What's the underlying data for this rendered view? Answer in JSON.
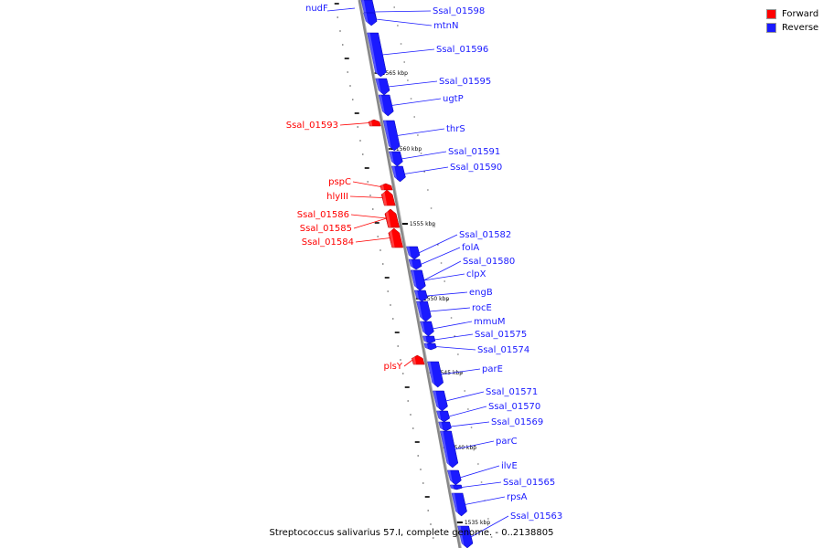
{
  "legend": {
    "forward_label": "Forward",
    "reverse_label": "Reverse",
    "forward_color": "#ff0000",
    "reverse_color": "#1a1aff"
  },
  "caption": "Streptococcus salivarius 57.I, complete genome. - 0..2138805",
  "colors": {
    "forward": "#ff0000",
    "reverse": "#1a1aff",
    "backbone": "#888888"
  },
  "scale": {
    "unit": "kbp",
    "ticks": [
      1565,
      1560,
      1555,
      1550,
      1545,
      1540,
      1535
    ]
  },
  "features": [
    {
      "name": "nudF",
      "strand": "reverse"
    },
    {
      "name": "Ssal_01598",
      "strand": "reverse"
    },
    {
      "name": "mtnN",
      "strand": "reverse"
    },
    {
      "name": "Ssal_01596",
      "strand": "reverse"
    },
    {
      "name": "Ssal_01595",
      "strand": "reverse"
    },
    {
      "name": "ugtP",
      "strand": "reverse"
    },
    {
      "name": "Ssal_01593",
      "strand": "forward"
    },
    {
      "name": "thrS",
      "strand": "reverse"
    },
    {
      "name": "Ssal_01591",
      "strand": "reverse"
    },
    {
      "name": "Ssal_01590",
      "strand": "reverse"
    },
    {
      "name": "pspC",
      "strand": "forward"
    },
    {
      "name": "hlyIII",
      "strand": "forward"
    },
    {
      "name": "Ssal_01586",
      "strand": "forward"
    },
    {
      "name": "Ssal_01585",
      "strand": "forward"
    },
    {
      "name": "Ssal_01584",
      "strand": "forward"
    },
    {
      "name": "Ssal_01582",
      "strand": "reverse"
    },
    {
      "name": "folA",
      "strand": "reverse"
    },
    {
      "name": "Ssal_01580",
      "strand": "reverse"
    },
    {
      "name": "clpX",
      "strand": "reverse"
    },
    {
      "name": "engB",
      "strand": "reverse"
    },
    {
      "name": "rocE",
      "strand": "reverse"
    },
    {
      "name": "mmuM",
      "strand": "reverse"
    },
    {
      "name": "Ssal_01575",
      "strand": "reverse"
    },
    {
      "name": "Ssal_01574",
      "strand": "reverse"
    },
    {
      "name": "plsY",
      "strand": "forward"
    },
    {
      "name": "parE",
      "strand": "reverse"
    },
    {
      "name": "Ssal_01571",
      "strand": "reverse"
    },
    {
      "name": "Ssal_01570",
      "strand": "reverse"
    },
    {
      "name": "Ssal_01569",
      "strand": "reverse"
    },
    {
      "name": "parC",
      "strand": "reverse"
    },
    {
      "name": "ilvE",
      "strand": "reverse"
    },
    {
      "name": "Ssal_01565",
      "strand": "reverse"
    },
    {
      "name": "rpsA",
      "strand": "reverse"
    },
    {
      "name": "Ssal_01563",
      "strand": "reverse"
    }
  ]
}
